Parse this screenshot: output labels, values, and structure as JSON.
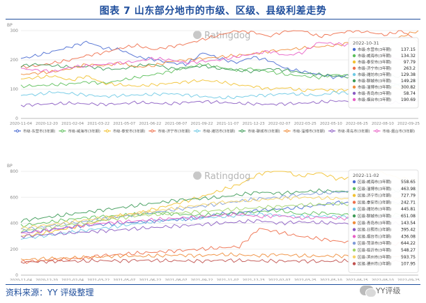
{
  "figure": {
    "title": "图表 7   山东部分地市的市级、区级、县级利差走势",
    "source": "资料来源：YY 评级整理",
    "wechat_label": "YY评级"
  },
  "chart_data": [
    {
      "type": "line",
      "watermark": "Ratingdog",
      "ylabel": "BP",
      "ylim": [
        0,
        300
      ],
      "yticks": [
        0,
        100,
        200,
        300
      ],
      "xticks": [
        "2020-11-04",
        "2020-12-20",
        "2021-02-04",
        "2021-03-22",
        "2021-05-07",
        "2021-06-22",
        "2021-08-07",
        "2021-09-22",
        "2021-11-07",
        "2021-12-23",
        "2022-02-07",
        "2022-03-25",
        "2022-05-10",
        "2022-06-25",
        "2022-08-10",
        "2022-09-25"
      ],
      "tooltip": {
        "date": "2022-10-31",
        "entries": [
          {
            "label": "市级-东营市(3年期)",
            "value": "137.15"
          },
          {
            "label": "市级-威海市(3年期)",
            "value": "134.32"
          },
          {
            "label": "市级-泰安市(3年期)",
            "value": "97.79"
          },
          {
            "label": "市级-济宁市(3年期)",
            "value": "263.2"
          },
          {
            "label": "市级-潍坊市(3年期)",
            "value": "129.38"
          },
          {
            "label": "市级-聊城市(3年期)",
            "value": "149.28"
          },
          {
            "label": "市级-淄博市(3年期)",
            "value": "300.82"
          },
          {
            "label": "市级-青岛市(3年期)",
            "value": "58.74"
          },
          {
            "label": "市级-烟台市(3年期)",
            "value": "190.69"
          }
        ]
      },
      "series": [
        {
          "name": "市级-东营市(3年期)",
          "color": "#4a6bd1",
          "values": [
            205,
            215,
            230,
            245,
            262,
            240,
            235,
            210,
            202,
            190,
            185,
            225,
            205,
            190,
            210,
            198,
            170,
            160,
            150,
            140,
            150,
            140,
            120,
            118,
            137
          ]
        },
        {
          "name": "市级-威海市(3年期)",
          "color": "#5cbf5a",
          "values": [
            110,
            112,
            115,
            118,
            125,
            120,
            130,
            140,
            150,
            160,
            175,
            185,
            175,
            165,
            170,
            160,
            150,
            145,
            140,
            150,
            145,
            150,
            120,
            110,
            134
          ]
        },
        {
          "name": "市级-泰安市(3年期)",
          "color": "#f2c232",
          "values": [
            135,
            140,
            145,
            130,
            145,
            120,
            115,
            110,
            115,
            120,
            125,
            130,
            125,
            115,
            110,
            100,
            105,
            95,
            100,
            95,
            100,
            95,
            110,
            100,
            98
          ]
        },
        {
          "name": "市级-济宁市(3年期)",
          "color": "#ee6e4a",
          "values": [
            175,
            180,
            190,
            200,
            215,
            225,
            240,
            250,
            235,
            245,
            255,
            270,
            285,
            300,
            295,
            280,
            300,
            300,
            280,
            290,
            300,
            295,
            285,
            300,
            263
          ]
        },
        {
          "name": "市级-潍坊市(3年期)",
          "color": "#6ec9e4",
          "values": [
            80,
            82,
            90,
            85,
            80,
            75,
            78,
            80,
            82,
            85,
            80,
            75,
            70,
            72,
            78,
            80,
            85,
            82,
            78,
            90,
            85,
            110,
            100,
            120,
            129
          ]
        },
        {
          "name": "市级-聊城市(3年期)",
          "color": "#3c9a56",
          "values": [
            180,
            185,
            180,
            175,
            178,
            170,
            168,
            180,
            185,
            170,
            172,
            180,
            170,
            165,
            160,
            170,
            165,
            155,
            150,
            145,
            140,
            150,
            140,
            145,
            149
          ]
        },
        {
          "name": "市级-淄博市(3年期)",
          "color": "#f08d3a",
          "values": [
            150,
            155,
            160,
            170,
            185,
            180,
            190,
            175,
            180,
            195,
            200,
            205,
            210,
            215,
            220,
            230,
            235,
            240,
            245,
            250,
            260,
            270,
            265,
            280,
            301
          ]
        },
        {
          "name": "市级-青岛市(3年期)",
          "color": "#8a5bc2",
          "values": [
            45,
            48,
            50,
            52,
            50,
            48,
            50,
            55,
            52,
            50,
            55,
            58,
            55,
            52,
            50,
            48,
            50,
            52,
            55,
            60,
            58,
            55,
            52,
            55,
            59
          ]
        },
        {
          "name": "市级-烟台市(3年期)",
          "color": "#e860c6",
          "values": [
            170,
            165,
            160,
            175,
            180,
            185,
            190,
            195,
            205,
            200,
            190,
            195,
            200,
            210,
            220,
            230,
            215,
            225,
            260,
            255,
            250,
            240,
            215,
            200,
            191
          ]
        }
      ]
    },
    {
      "type": "line",
      "watermark": "Ratingdog",
      "ylabel": "BP",
      "ylim": [
        0,
        800
      ],
      "yticks": [
        0,
        200,
        400,
        600,
        800
      ],
      "xticks": [
        "2020-11-04",
        "2020-12-20",
        "2021-02-04",
        "2021-03-22",
        "2021-05-07",
        "2021-06-22",
        "2021-08-07",
        "2021-09-22",
        "2021-11-07",
        "2021-12-23",
        "2022-02-07",
        "2022-03-25",
        "2022-05-10",
        "2022-06-25",
        "2022-08-10",
        "2022-09-25"
      ],
      "tooltip": {
        "date": "2022-11-02",
        "entries": [
          {
            "label": "区级-威海市(3年期)",
            "value": "558.65"
          },
          {
            "label": "区级-淄博市(3年期)",
            "value": "463.98"
          },
          {
            "label": "区级-济宁市(3年期)",
            "value": "727.79"
          },
          {
            "label": "区级-泰安市(3年期)",
            "value": "242.71"
          },
          {
            "label": "区级-潍坊市(3年期)",
            "value": "445.81"
          },
          {
            "label": "区级-聊城市(3年期)",
            "value": "651.08"
          },
          {
            "label": "区级-青岛市(3年期)",
            "value": "143.54"
          },
          {
            "label": "区级-日照市(3年期)",
            "value": "395.42"
          },
          {
            "label": "区级-烟台市(3年期)",
            "value": "436.08"
          },
          {
            "label": "区级-菏泽市(3年期)",
            "value": "644.22"
          },
          {
            "label": "区级-临沂市(3年期)",
            "value": "548.27"
          },
          {
            "label": "区级-滨州市(3年期)",
            "value": "593.75"
          },
          {
            "label": "区级-德州市(3年期)",
            "value": "107.95"
          }
        ]
      },
      "series": [
        {
          "name": "区级-威海市(3年期)",
          "color": "#4a6bd1",
          "values": [
            330,
            340,
            360,
            380,
            390,
            400,
            410,
            420,
            430,
            440,
            470,
            480,
            500,
            510,
            520,
            540,
            560,
            550,
            570,
            560,
            559
          ]
        },
        {
          "name": "区级-淄博市(3年期)",
          "color": "#5cbf5a",
          "values": [
            380,
            400,
            420,
            440,
            450,
            460,
            470,
            480,
            470,
            460,
            470,
            480,
            490,
            500,
            470,
            480,
            470,
            460,
            470,
            465,
            464
          ]
        },
        {
          "name": "区级-济宁市(3年期)",
          "color": "#f2c232",
          "values": [
            300,
            320,
            350,
            380,
            420,
            460,
            480,
            520,
            560,
            600,
            650,
            700,
            780,
            820,
            760,
            790,
            740,
            770,
            800,
            750,
            728
          ]
        },
        {
          "name": "区级-泰安市(3年期)",
          "color": "#ee6e4a",
          "values": [
            100,
            110,
            120,
            130,
            150,
            160,
            170,
            180,
            190,
            200,
            210,
            220,
            360,
            330,
            300,
            280,
            260,
            250,
            245,
            240,
            243
          ]
        },
        {
          "name": "区级-潍坊市(3年期)",
          "color": "#6ec9e4",
          "values": [
            280,
            300,
            320,
            340,
            360,
            380,
            400,
            420,
            430,
            440,
            450,
            460,
            470,
            460,
            450,
            455,
            450,
            445,
            450,
            446,
            446
          ]
        },
        {
          "name": "区级-聊城市(3年期)",
          "color": "#3c9a56",
          "values": [
            420,
            440,
            460,
            480,
            500,
            520,
            540,
            560,
            580,
            590,
            600,
            620,
            640,
            630,
            640,
            650,
            645,
            650,
            655,
            650,
            651
          ]
        },
        {
          "name": "区级-青岛市(3年期)",
          "color": "#f08d3a",
          "values": [
            120,
            125,
            130,
            135,
            140,
            150,
            145,
            150,
            155,
            150,
            160,
            155,
            150,
            160,
            150,
            145,
            150,
            140,
            145,
            143,
            144
          ]
        },
        {
          "name": "区级-日照市(3年期)",
          "color": "#8a5bc2",
          "values": [
            300,
            310,
            320,
            330,
            340,
            350,
            360,
            370,
            380,
            390,
            400,
            410,
            420,
            400,
            410,
            405,
            400,
            395,
            400,
            396,
            395
          ]
        },
        {
          "name": "区级-烟台市(3年期)",
          "color": "#e860c6",
          "values": [
            320,
            340,
            360,
            380,
            400,
            410,
            420,
            430,
            440,
            450,
            460,
            470,
            450,
            460,
            440,
            445,
            440,
            435,
            440,
            436,
            436
          ]
        },
        {
          "name": "区级-菏泽市(3年期)",
          "color": "#7e9bd8",
          "values": [
            350,
            370,
            390,
            410,
            430,
            450,
            470,
            490,
            510,
            530,
            550,
            570,
            590,
            600,
            620,
            630,
            640,
            645,
            640,
            645,
            644
          ]
        },
        {
          "name": "区级-临沂市(3年期)",
          "color": "#a0d468",
          "values": [
            340,
            360,
            380,
            400,
            420,
            440,
            460,
            470,
            480,
            490,
            500,
            510,
            520,
            530,
            540,
            545,
            550,
            548,
            545,
            548,
            548
          ]
        },
        {
          "name": "区级-滨州市(3年期)",
          "color": "#f6d365",
          "values": [
            360,
            380,
            400,
            420,
            440,
            460,
            480,
            500,
            520,
            540,
            560,
            570,
            580,
            590,
            600,
            595,
            590,
            595,
            600,
            594,
            594
          ]
        },
        {
          "name": "区级-德州市(3年期)",
          "color": "#c0504d",
          "values": [
            100,
            105,
            110,
            108,
            112,
            110,
            115,
            112,
            110,
            108,
            115,
            112,
            110,
            108,
            110,
            106,
            108,
            107,
            109,
            108,
            108
          ]
        }
      ]
    }
  ]
}
